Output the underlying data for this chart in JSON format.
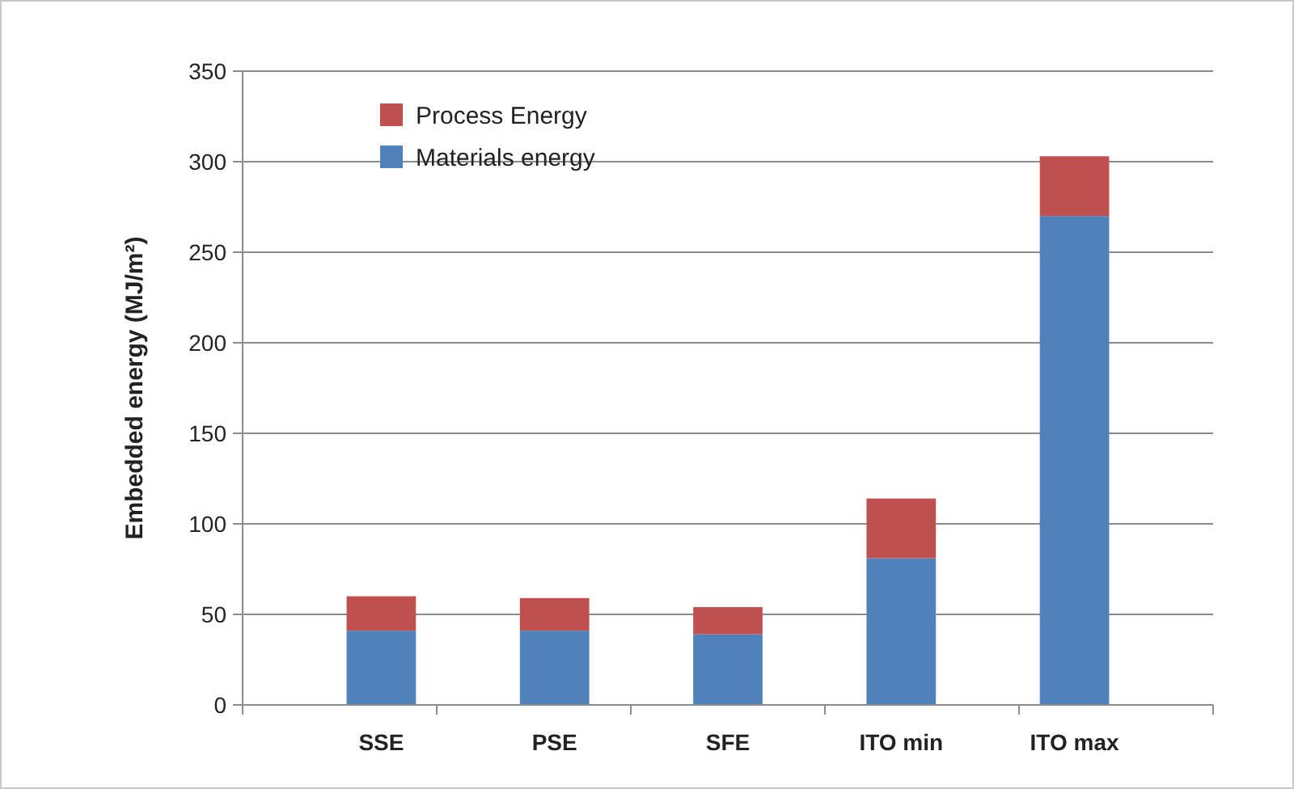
{
  "chart_data": {
    "type": "bar",
    "stacked": true,
    "categories": [
      "SSE",
      "PSE",
      "SFE",
      "ITO min",
      "ITO max"
    ],
    "series": [
      {
        "name": "Materials energy",
        "color": "#4f81bd",
        "values": [
          41,
          41,
          39,
          81,
          270
        ]
      },
      {
        "name": "Process Energy",
        "color": "#c0504d",
        "values": [
          19,
          18,
          15,
          33,
          33
        ]
      }
    ],
    "ylabel": "Embedded energy (MJ/m²)",
    "ylim": [
      0,
      350
    ],
    "yticks": [
      0,
      50,
      100,
      150,
      200,
      250,
      300,
      350
    ],
    "grid": "y",
    "legend": "top left"
  }
}
